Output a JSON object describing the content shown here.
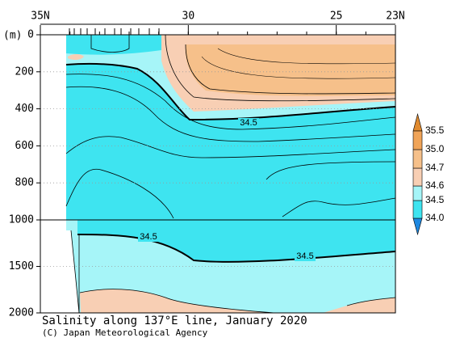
{
  "chart_data": {
    "type": "contour",
    "title": "Salinity along 137°E line, January 2020",
    "credit": "(C) Japan Meteorological Agency",
    "y_label": "(m)",
    "xlim": [
      35,
      23
    ],
    "xticks": [
      {
        "value": 35,
        "label": "35N"
      },
      30,
      25,
      {
        "value": 23,
        "label": "23N"
      }
    ],
    "ylim": [
      0,
      2000
    ],
    "y_break": 1000,
    "yticks": [
      0,
      200,
      400,
      600,
      800,
      1000,
      1500,
      2000
    ],
    "grid": true,
    "contour_labels": [
      "34.5",
      "34.5",
      "34.5"
    ],
    "colorbar": {
      "levels": [
        {
          "value": 34.0,
          "label": "34.0"
        },
        34.5,
        34.6,
        34.7,
        {
          "value": 35.0,
          "label": "35.0"
        },
        35.5
      ],
      "colors": [
        "#1e88e0",
        "#3ee4f0",
        "#a6f5f8",
        "#f8cfb4",
        "#f6c08a",
        "#f0a458",
        "#e08a30"
      ]
    }
  }
}
